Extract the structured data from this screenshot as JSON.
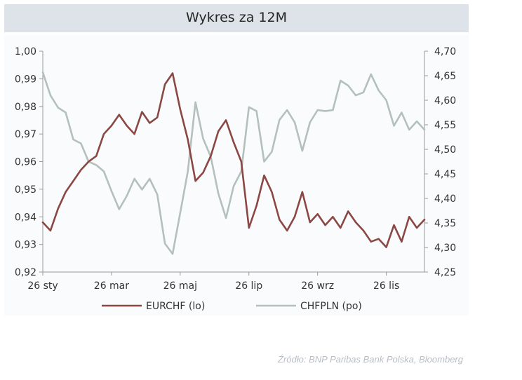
{
  "chart_data": {
    "type": "line",
    "title": "Wykres za 12M",
    "x_labels": [
      "26 sty",
      "26 mar",
      "26 maj",
      "26 lip",
      "26 wrz",
      "26 lis"
    ],
    "x_label_index": [
      0,
      9,
      18,
      27,
      36,
      45
    ],
    "n_points": 51,
    "left_axis": {
      "ylim": [
        0.92,
        1.0
      ],
      "ticks": [
        0.92,
        0.93,
        0.94,
        0.95,
        0.96,
        0.97,
        0.98,
        0.99,
        1.0
      ],
      "tick_labels": [
        "0,92",
        "0,93",
        "0,94",
        "0,95",
        "0,96",
        "0,97",
        "0,98",
        "0,99",
        "1,00"
      ]
    },
    "right_axis": {
      "ylim": [
        4.25,
        4.7
      ],
      "ticks": [
        4.25,
        4.3,
        4.35,
        4.4,
        4.45,
        4.5,
        4.55,
        4.6,
        4.65,
        4.7
      ],
      "tick_labels": [
        "4,25",
        "4,30",
        "4,35",
        "4,40",
        "4,45",
        "4,50",
        "4,55",
        "4,60",
        "4,65",
        "4,70"
      ]
    },
    "series": [
      {
        "name": "EURCHF (lo)",
        "axis": "left",
        "color": "#8b4744",
        "values": [
          0.938,
          0.935,
          0.943,
          0.949,
          0.953,
          0.957,
          0.96,
          0.962,
          0.97,
          0.973,
          0.977,
          0.973,
          0.97,
          0.978,
          0.974,
          0.976,
          0.988,
          0.992,
          0.979,
          0.968,
          0.953,
          0.956,
          0.962,
          0.971,
          0.975,
          0.967,
          0.96,
          0.936,
          0.944,
          0.955,
          0.949,
          0.939,
          0.935,
          0.94,
          0.949,
          0.938,
          0.941,
          0.937,
          0.94,
          0.936,
          0.942,
          0.938,
          0.935,
          0.931,
          0.932,
          0.929,
          0.937,
          0.931,
          0.94,
          0.936,
          0.939
        ]
      },
      {
        "name": "CHFPLN (po)",
        "axis": "right",
        "color": "#b3c0bc",
        "values": [
          4.657,
          4.61,
          4.585,
          4.575,
          4.52,
          4.512,
          4.475,
          4.468,
          4.455,
          4.415,
          4.378,
          4.405,
          4.44,
          4.418,
          4.44,
          4.408,
          4.308,
          4.287,
          4.37,
          4.455,
          4.596,
          4.522,
          4.485,
          4.41,
          4.36,
          4.425,
          4.455,
          4.586,
          4.578,
          4.475,
          4.495,
          4.56,
          4.58,
          4.555,
          4.497,
          4.555,
          4.58,
          4.578,
          4.58,
          4.64,
          4.63,
          4.61,
          4.616,
          4.653,
          4.62,
          4.6,
          4.548,
          4.575,
          4.54,
          4.557,
          4.54
        ]
      }
    ],
    "legend_position": "bottom"
  },
  "source": "Źródło:  BNP Paribas Bank Polska, Bloomberg"
}
